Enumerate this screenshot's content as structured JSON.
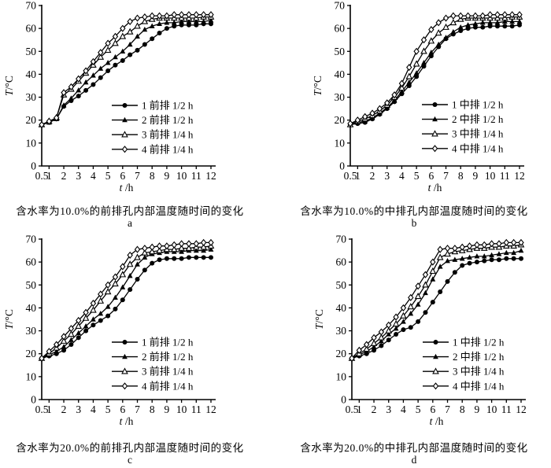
{
  "figure": {
    "background": "#ffffff",
    "ink": "#000000"
  },
  "chart_data": [
    {
      "panel_label": "a",
      "caption": "含水率为10.0%的前排孔内部温度随时间的变化",
      "type": "line",
      "xlabel": "t /h",
      "ylabel": "T/°C",
      "ylim": [
        0,
        70
      ],
      "yticks": [
        0,
        10,
        20,
        30,
        40,
        50,
        60,
        70
      ],
      "xticks": [
        0.5,
        1,
        2,
        3,
        4,
        5,
        6,
        7,
        8,
        9,
        10,
        11,
        12
      ],
      "legend_position": "lower right",
      "grid": false,
      "x": [
        0.5,
        1,
        1.5,
        2,
        2.5,
        3,
        3.5,
        4,
        4.5,
        5,
        5.5,
        6,
        6.5,
        7,
        7.5,
        8,
        8.5,
        9,
        9.5,
        10,
        10.5,
        11,
        11.5,
        12
      ],
      "series": [
        {
          "name": "1 前排 1/2 h",
          "marker": "circle-filled",
          "values": [
            18,
            19,
            20.5,
            26,
            28.5,
            30.5,
            33,
            35.5,
            38.5,
            41.5,
            44,
            46,
            48.5,
            50.5,
            53,
            55.5,
            58,
            60,
            61,
            61.5,
            61.5,
            61.5,
            62,
            62
          ]
        },
        {
          "name": "2 前排 1/2 h",
          "marker": "triangle-filled",
          "values": [
            18,
            19,
            20.5,
            26.5,
            29.5,
            33,
            36.5,
            39.5,
            42.5,
            45,
            47.5,
            50,
            53,
            56.5,
            59.5,
            61,
            62,
            62.5,
            62.5,
            63,
            63,
            63,
            63,
            63.5
          ]
        },
        {
          "name": "3 前排 1/4 h",
          "marker": "triangle-open",
          "values": [
            18,
            19.5,
            21,
            31,
            33.5,
            37,
            40.5,
            44,
            47.5,
            50.5,
            53.5,
            56.5,
            58.5,
            61,
            63,
            64,
            64.5,
            64.5,
            64.5,
            64.5,
            64.5,
            64.5,
            65,
            65
          ]
        },
        {
          "name": "4 前排 1/4 h",
          "marker": "diamond-open",
          "values": [
            18,
            19.5,
            21,
            32,
            34.5,
            38,
            41.5,
            45.5,
            49.5,
            53.5,
            56.5,
            60,
            63,
            64.5,
            65,
            65.5,
            65.5,
            65.5,
            66,
            66,
            66,
            66,
            66,
            66
          ]
        }
      ]
    },
    {
      "panel_label": "b",
      "caption": "含水率为10.0%的中排孔内部温度随时间的变化",
      "type": "line",
      "xlabel": "t /h",
      "ylabel": "T/°C",
      "ylim": [
        0,
        70
      ],
      "yticks": [
        0,
        10,
        20,
        30,
        40,
        50,
        60,
        70
      ],
      "xticks": [
        0.5,
        1,
        2,
        3,
        4,
        5,
        6,
        7,
        8,
        9,
        10,
        11,
        12
      ],
      "legend_position": "lower right",
      "grid": false,
      "x": [
        0.5,
        1,
        1.5,
        2,
        2.5,
        3,
        3.5,
        4,
        4.5,
        5,
        5.5,
        6,
        6.5,
        7,
        7.5,
        8,
        8.5,
        9,
        9.5,
        10,
        10.5,
        11,
        11.5,
        12
      ],
      "series": [
        {
          "name": "1 中排 1/2 h",
          "marker": "circle-filled",
          "values": [
            18,
            18.5,
            19,
            20.5,
            22.5,
            25,
            28,
            31.5,
            35,
            39,
            43.5,
            48,
            52,
            55.5,
            57.5,
            59,
            60,
            60.5,
            60.5,
            61,
            61,
            61,
            61,
            61.5
          ]
        },
        {
          "name": "2 中排 1/2 h",
          "marker": "triangle-filled",
          "values": [
            18,
            19,
            19.5,
            21,
            23,
            25.5,
            28.5,
            32.5,
            36.5,
            40.5,
            45,
            49.5,
            53,
            56,
            58.5,
            60.5,
            61.5,
            62,
            62.5,
            62.5,
            62.5,
            63,
            63,
            63
          ]
        },
        {
          "name": "3 中排 1/4 h",
          "marker": "triangle-open",
          "values": [
            18,
            19.5,
            20.5,
            22,
            24,
            26.5,
            30,
            34,
            39,
            44.5,
            50,
            54.5,
            58,
            60.5,
            62.5,
            64,
            64.5,
            64.5,
            64.5,
            64.5,
            64.5,
            64.5,
            65,
            65
          ]
        },
        {
          "name": "4 中排 1/4 h",
          "marker": "diamond-open",
          "values": [
            18.5,
            20,
            21.5,
            23,
            25,
            27.5,
            31,
            36,
            43,
            50,
            55,
            59.5,
            62.5,
            64.5,
            65.5,
            65.5,
            65.5,
            65.5,
            65.5,
            66,
            66,
            66,
            66,
            66
          ]
        }
      ]
    },
    {
      "panel_label": "c",
      "caption": "含水率为20.0%的前排孔内部温度随时间的变化",
      "type": "line",
      "xlabel": "t /h",
      "ylabel": "T/°C",
      "ylim": [
        0,
        70
      ],
      "yticks": [
        0,
        10,
        20,
        30,
        40,
        50,
        60,
        70
      ],
      "xticks": [
        0.5,
        1,
        2,
        3,
        4,
        5,
        6,
        7,
        8,
        9,
        10,
        11,
        12
      ],
      "legend_position": "lower right",
      "grid": false,
      "x": [
        0.5,
        1,
        1.5,
        2,
        2.5,
        3,
        3.5,
        4,
        4.5,
        5,
        5.5,
        6,
        6.5,
        7,
        7.5,
        8,
        8.5,
        9,
        9.5,
        10,
        10.5,
        11,
        11.5,
        12
      ],
      "series": [
        {
          "name": "1 前排 1/2 h",
          "marker": "circle-filled",
          "values": [
            18,
            19,
            20,
            21.5,
            24,
            27,
            30,
            32.5,
            34.5,
            36.5,
            39.5,
            43.5,
            48,
            52.5,
            56.5,
            59.5,
            61,
            61.5,
            61.5,
            61.5,
            62,
            62,
            62,
            62
          ]
        },
        {
          "name": "2 前排 1/2 h",
          "marker": "triangle-filled",
          "values": [
            18,
            19.5,
            21,
            23,
            26,
            29,
            32,
            35,
            37.5,
            40.5,
            44.5,
            49,
            54,
            59,
            62,
            63.5,
            64,
            64.5,
            64.5,
            64.5,
            65,
            65,
            65,
            65.5
          ]
        },
        {
          "name": "3 前排 1/4 h",
          "marker": "triangle-open",
          "values": [
            18,
            20,
            22.5,
            25.5,
            28.5,
            32,
            35.5,
            39,
            43,
            47,
            50.5,
            54.5,
            59,
            62,
            64,
            64.5,
            65,
            65.5,
            65.5,
            66,
            66,
            66.5,
            66.5,
            67
          ]
        },
        {
          "name": "4 前排 1/4 h",
          "marker": "diamond-open",
          "values": [
            18,
            21,
            24,
            27.5,
            31,
            34.5,
            38,
            42,
            46,
            50,
            53.5,
            58,
            63,
            65.5,
            66,
            66.5,
            67,
            67,
            67.5,
            68,
            68,
            68,
            68.5,
            68.5
          ]
        }
      ]
    },
    {
      "panel_label": "d",
      "caption": "含水率为20.0%的中排孔内部温度随时间的变化",
      "type": "line",
      "xlabel": "t /h",
      "ylabel": "T/°C",
      "ylim": [
        0,
        70
      ],
      "yticks": [
        0,
        10,
        20,
        30,
        40,
        50,
        60,
        70
      ],
      "xticks": [
        0.5,
        1,
        2,
        3,
        4,
        5,
        6,
        7,
        8,
        9,
        10,
        11,
        12
      ],
      "legend_position": "lower right",
      "grid": false,
      "x": [
        0.5,
        1,
        1.5,
        2,
        2.5,
        3,
        3.5,
        4,
        4.5,
        5,
        5.5,
        6,
        6.5,
        7,
        7.5,
        8,
        8.5,
        9,
        9.5,
        10,
        10.5,
        11,
        11.5,
        12
      ],
      "series": [
        {
          "name": "1 中排 1/2 h",
          "marker": "circle-filled",
          "values": [
            18,
            19,
            20,
            21.5,
            23.5,
            26,
            28.5,
            30.5,
            31.5,
            34,
            38,
            42.5,
            47,
            51.5,
            55.5,
            58.5,
            59.5,
            60,
            60.5,
            61,
            61,
            61.5,
            61.5,
            61.5
          ]
        },
        {
          "name": "2 中排 1/2 h",
          "marker": "triangle-filled",
          "values": [
            18,
            19.5,
            21,
            23,
            25.5,
            28.5,
            31,
            34,
            37.5,
            41.5,
            46.5,
            52.5,
            58,
            60.5,
            61,
            61.5,
            62,
            62.5,
            62.5,
            63,
            63.5,
            64,
            64,
            65
          ]
        },
        {
          "name": "3 中排 1/4 h",
          "marker": "triangle-open",
          "values": [
            18,
            20,
            22,
            24.5,
            27,
            30,
            33,
            36.5,
            40.5,
            45,
            50,
            56,
            62,
            63.5,
            64.5,
            65,
            65.5,
            66,
            66,
            66.5,
            66.5,
            67,
            67,
            67.5
          ]
        },
        {
          "name": "4 中排 1/4 h",
          "marker": "diamond-open",
          "values": [
            18,
            21.5,
            24,
            27,
            29.5,
            32.5,
            36,
            40,
            44.5,
            49.5,
            54.5,
            60,
            65.5,
            66,
            66,
            66.5,
            67,
            67.5,
            67.5,
            68,
            68,
            68.5,
            68.5,
            68.5
          ]
        }
      ]
    }
  ]
}
